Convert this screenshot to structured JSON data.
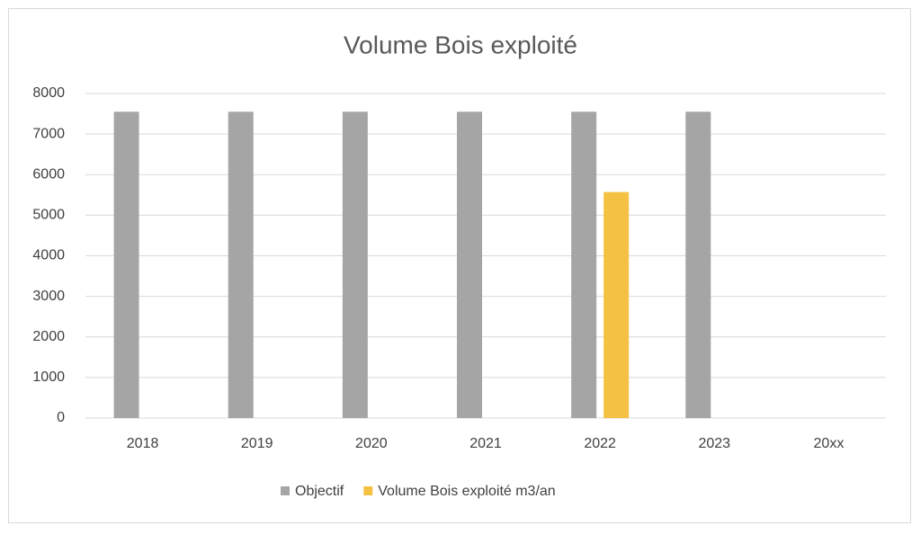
{
  "chart_data": {
    "type": "bar",
    "title": "Volume Bois exploité",
    "categories": [
      "2018",
      "2019",
      "2020",
      "2021",
      "2022",
      "2023",
      "20xx"
    ],
    "series": [
      {
        "name": "Objectif",
        "color": "#a5a5a5",
        "values": [
          7550,
          7550,
          7550,
          7550,
          7550,
          7550,
          null
        ]
      },
      {
        "name": "Volume Bois exploité m3/an",
        "color": "#f5c142",
        "values": [
          null,
          null,
          null,
          null,
          5570,
          null,
          null
        ]
      }
    ],
    "ylim": [
      0,
      8000
    ],
    "yticks": [
      0,
      1000,
      2000,
      3000,
      4000,
      5000,
      6000,
      7000,
      8000
    ],
    "grid": true,
    "legend": "bottom"
  }
}
